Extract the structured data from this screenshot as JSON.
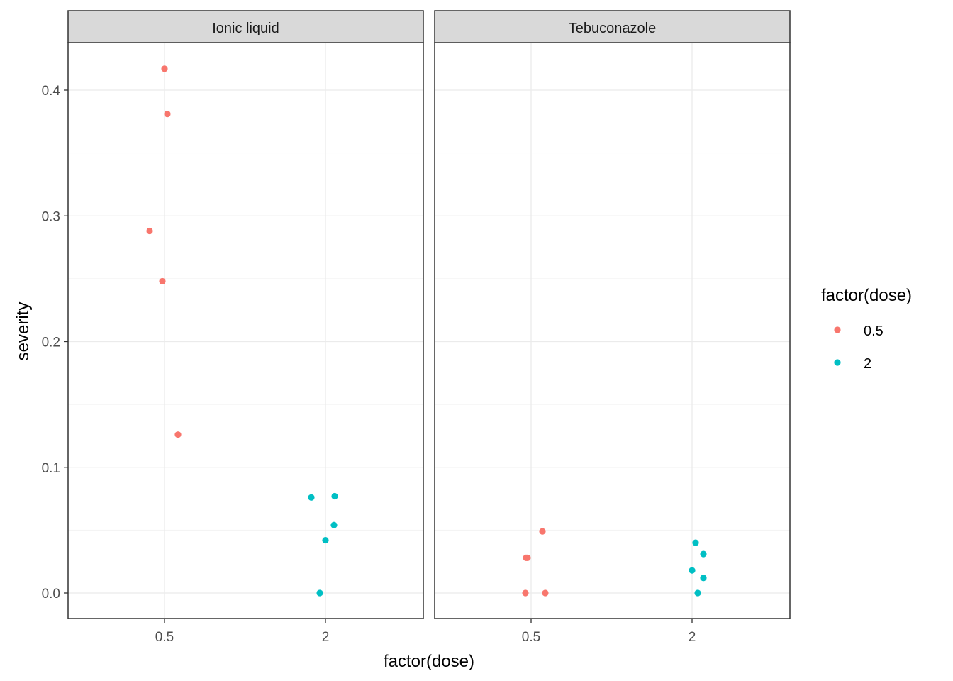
{
  "chart_data": {
    "type": "scatter",
    "xlabel": "factor(dose)",
    "ylabel": "severity",
    "x_categories": [
      "0.5",
      "2"
    ],
    "y_ticks": [
      "0.0",
      "0.1",
      "0.2",
      "0.3",
      "0.4"
    ],
    "ylim": [
      -0.02,
      0.44
    ],
    "grid": true,
    "legend": {
      "title": "factor(dose)",
      "position": "right",
      "entries": [
        {
          "label": "0.5",
          "color": "#F8766D"
        },
        {
          "label": "2",
          "color": "#00BFC4"
        }
      ]
    },
    "panels": [
      {
        "strip": "Ionic liquid",
        "points": [
          {
            "dose": "0.5",
            "x": 0.5,
            "y": 0.417
          },
          {
            "dose": "0.5",
            "x": 0.5,
            "y": 0.381
          },
          {
            "dose": "0.5",
            "x": 0.5,
            "y": 0.288
          },
          {
            "dose": "0.5",
            "x": 0.5,
            "y": 0.248
          },
          {
            "dose": "0.5",
            "x": 0.5,
            "y": 0.126
          },
          {
            "dose": "2",
            "x": 2,
            "y": 0.077
          },
          {
            "dose": "2",
            "x": 2,
            "y": 0.076
          },
          {
            "dose": "2",
            "x": 2,
            "y": 0.054
          },
          {
            "dose": "2",
            "x": 2,
            "y": 0.042
          },
          {
            "dose": "2",
            "x": 2,
            "y": 0.0
          }
        ]
      },
      {
        "strip": "Tebuconazole",
        "points": [
          {
            "dose": "0.5",
            "x": 0.5,
            "y": 0.049
          },
          {
            "dose": "0.5",
            "x": 0.5,
            "y": 0.028
          },
          {
            "dose": "0.5",
            "x": 0.5,
            "y": 0.028
          },
          {
            "dose": "0.5",
            "x": 0.5,
            "y": 0.0
          },
          {
            "dose": "0.5",
            "x": 0.5,
            "y": 0.0
          },
          {
            "dose": "2",
            "x": 2,
            "y": 0.04
          },
          {
            "dose": "2",
            "x": 2,
            "y": 0.031
          },
          {
            "dose": "2",
            "x": 2,
            "y": 0.018
          },
          {
            "dose": "2",
            "x": 2,
            "y": 0.012
          },
          {
            "dose": "2",
            "x": 2,
            "y": 0.0
          }
        ]
      }
    ]
  }
}
